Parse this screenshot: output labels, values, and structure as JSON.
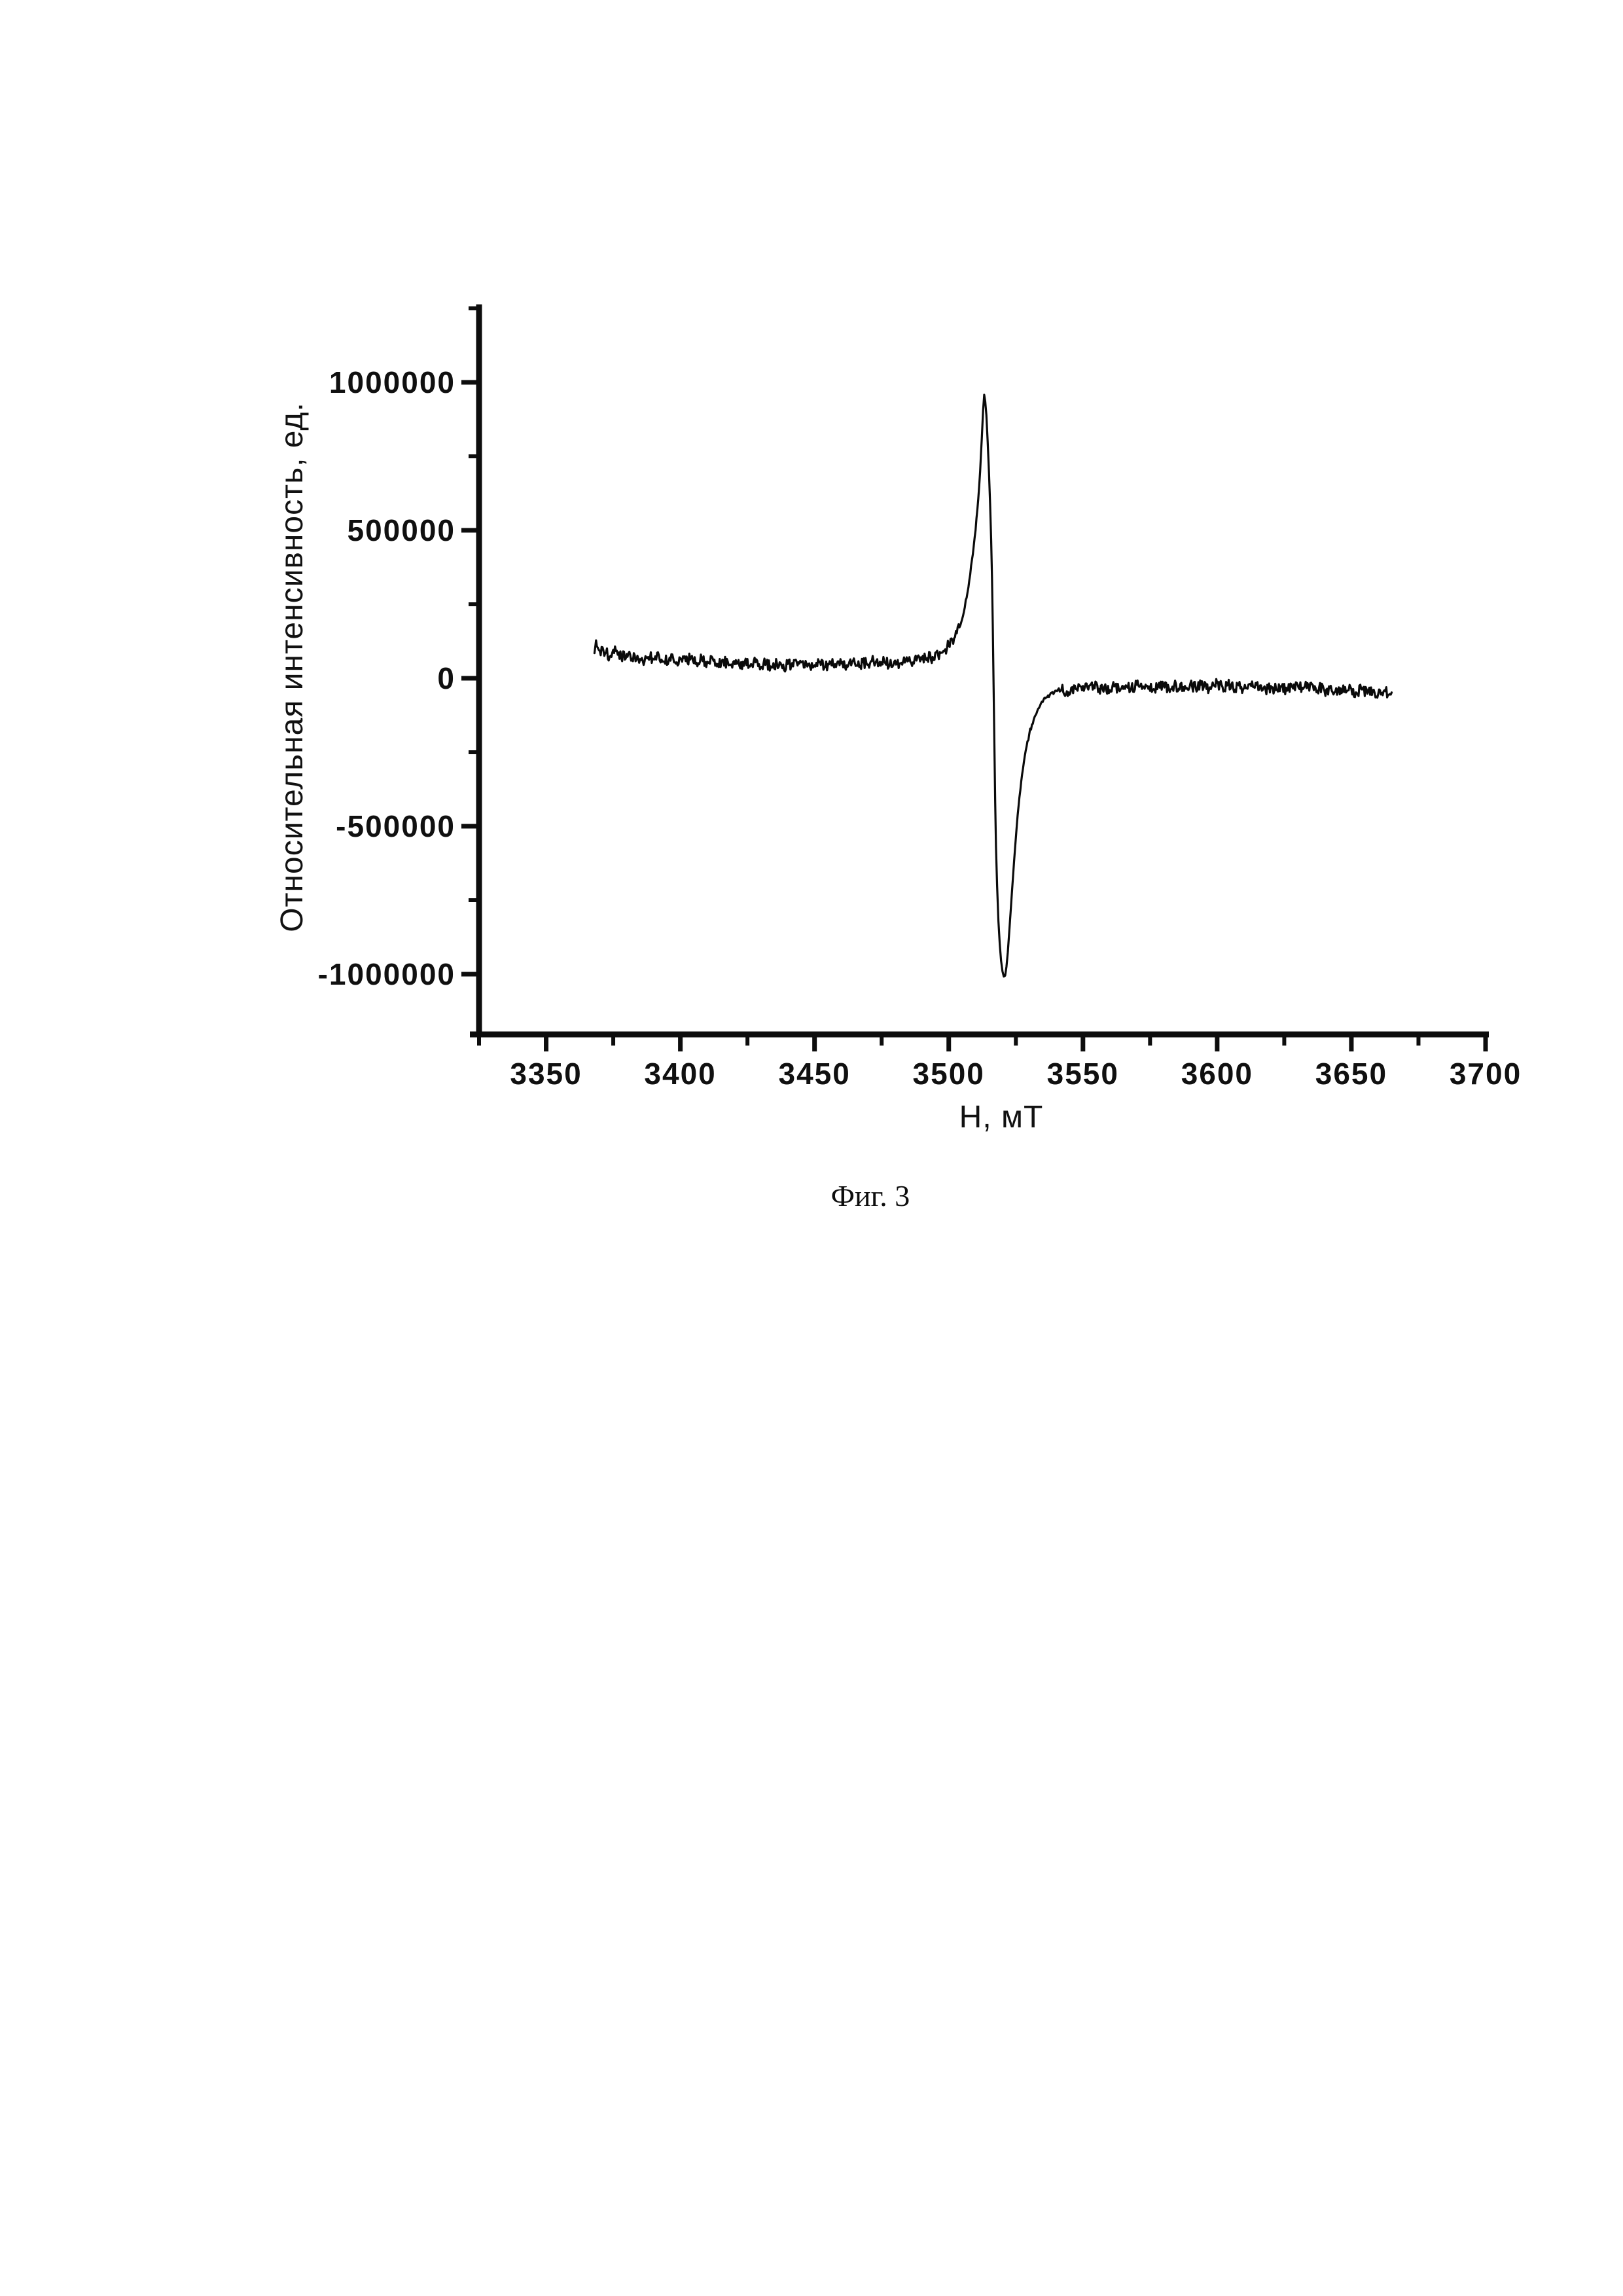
{
  "page": {
    "background_color": "#ffffff"
  },
  "figure_caption": "Фиг. 3",
  "chart_data": {
    "type": "line",
    "title": "",
    "xlabel": "Н, мТ",
    "ylabel": "Относительная интенсивность, ед.",
    "x_axis_range": [
      3325,
      3700
    ],
    "y_axis_range": [
      -1250000,
      1250000
    ],
    "grid": false,
    "legend": false,
    "line_color": "#0a0a0a",
    "axis_color": "#0d0d0d",
    "noise_amplitude": 20000,
    "x_ticks": {
      "major": [
        {
          "value": 3350,
          "label": "3350"
        },
        {
          "value": 3400,
          "label": "3400"
        },
        {
          "value": 3450,
          "label": "3450"
        },
        {
          "value": 3500,
          "label": "3500"
        },
        {
          "value": 3550,
          "label": "3550"
        },
        {
          "value": 3600,
          "label": "3600"
        },
        {
          "value": 3650,
          "label": "3650"
        },
        {
          "value": 3700,
          "label": "3700"
        }
      ],
      "minor": [
        3325,
        3375,
        3425,
        3475,
        3525,
        3575,
        3625,
        3675
      ]
    },
    "y_ticks": {
      "major": [
        {
          "value": 1000000,
          "label": "1000000"
        },
        {
          "value": 500000,
          "label": "500000"
        },
        {
          "value": 0,
          "label": "0"
        },
        {
          "value": -500000,
          "label": "-500000"
        },
        {
          "value": -1000000,
          "label": "-1000000"
        }
      ],
      "minor": [
        1250000,
        750000,
        250000,
        -250000,
        -750000
      ]
    },
    "series": [
      {
        "points": [
          [
            3368,
            85000
          ],
          [
            3368.6,
            128000
          ],
          [
            3369.2,
            104000
          ],
          [
            3370,
            92000
          ],
          [
            3372,
            84000
          ],
          [
            3374,
            76000
          ],
          [
            3376,
            92000
          ],
          [
            3378,
            68000
          ],
          [
            3380,
            82000
          ],
          [
            3382,
            66000
          ],
          [
            3384,
            76000
          ],
          [
            3386,
            58000
          ],
          [
            3388,
            72000
          ],
          [
            3390,
            64000
          ],
          [
            3392,
            78000
          ],
          [
            3394,
            56000
          ],
          [
            3396,
            70000
          ],
          [
            3398,
            54000
          ],
          [
            3400,
            68000
          ],
          [
            3402,
            58000
          ],
          [
            3404,
            72000
          ],
          [
            3406,
            52000
          ],
          [
            3408,
            66000
          ],
          [
            3410,
            56000
          ],
          [
            3412,
            68000
          ],
          [
            3414,
            48000
          ],
          [
            3416,
            62000
          ],
          [
            3418,
            44000
          ],
          [
            3420,
            58000
          ],
          [
            3422,
            42000
          ],
          [
            3424,
            56000
          ],
          [
            3426,
            40000
          ],
          [
            3428,
            54000
          ],
          [
            3430,
            38000
          ],
          [
            3432,
            52000
          ],
          [
            3434,
            36000
          ],
          [
            3436,
            50000
          ],
          [
            3438,
            34000
          ],
          [
            3440,
            48000
          ],
          [
            3442,
            40000
          ],
          [
            3444,
            54000
          ],
          [
            3446,
            36000
          ],
          [
            3448,
            50000
          ],
          [
            3450,
            44000
          ],
          [
            3452,
            56000
          ],
          [
            3454,
            40000
          ],
          [
            3456,
            52000
          ],
          [
            3458,
            38000
          ],
          [
            3460,
            50000
          ],
          [
            3462,
            44000
          ],
          [
            3464,
            56000
          ],
          [
            3466,
            42000
          ],
          [
            3468,
            54000
          ],
          [
            3470,
            46000
          ],
          [
            3472,
            58000
          ],
          [
            3474,
            44000
          ],
          [
            3476,
            56000
          ],
          [
            3478,
            48000
          ],
          [
            3480,
            60000
          ],
          [
            3482,
            50000
          ],
          [
            3484,
            62000
          ],
          [
            3486,
            52000
          ],
          [
            3488,
            60000
          ],
          [
            3490,
            64000
          ],
          [
            3492,
            68000
          ],
          [
            3494,
            72000
          ],
          [
            3496,
            80000
          ],
          [
            3498,
            92000
          ],
          [
            3500,
            110000
          ],
          [
            3502,
            135000
          ],
          [
            3503,
            152000
          ],
          [
            3504,
            172000
          ],
          [
            3505,
            200000
          ],
          [
            3506,
            240000
          ],
          [
            3507,
            290000
          ],
          [
            3508,
            350000
          ],
          [
            3509,
            420000
          ],
          [
            3510,
            500000
          ],
          [
            3511,
            605000
          ],
          [
            3511.7,
            700000
          ],
          [
            3512.3,
            810000
          ],
          [
            3512.8,
            905000
          ],
          [
            3513.2,
            958000
          ],
          [
            3513.6,
            935000
          ],
          [
            3514,
            890000
          ],
          [
            3514.5,
            800000
          ],
          [
            3515,
            690000
          ],
          [
            3515.4,
            590000
          ],
          [
            3515.8,
            470000
          ],
          [
            3516.1,
            340000
          ],
          [
            3516.4,
            180000
          ],
          [
            3516.7,
            -20000
          ],
          [
            3517,
            -230000
          ],
          [
            3517.3,
            -420000
          ],
          [
            3517.6,
            -570000
          ],
          [
            3518,
            -700000
          ],
          [
            3518.5,
            -820000
          ],
          [
            3519,
            -900000
          ],
          [
            3519.5,
            -955000
          ],
          [
            3520,
            -990000
          ],
          [
            3520.5,
            -1008000
          ],
          [
            3521,
            -1005000
          ],
          [
            3521.5,
            -975000
          ],
          [
            3522,
            -925000
          ],
          [
            3522.5,
            -862000
          ],
          [
            3523,
            -795000
          ],
          [
            3523.5,
            -728000
          ],
          [
            3524,
            -662000
          ],
          [
            3525,
            -538000
          ],
          [
            3526,
            -432000
          ],
          [
            3527,
            -348000
          ],
          [
            3528,
            -282000
          ],
          [
            3529,
            -230000
          ],
          [
            3530,
            -188000
          ],
          [
            3531,
            -156000
          ],
          [
            3532,
            -130000
          ],
          [
            3533,
            -110000
          ],
          [
            3534,
            -93000
          ],
          [
            3535,
            -80000
          ],
          [
            3536,
            -68000
          ],
          [
            3537,
            -58000
          ],
          [
            3538,
            -50000
          ],
          [
            3540,
            -42000
          ],
          [
            3542,
            -38000
          ],
          [
            3544,
            -44000
          ],
          [
            3546,
            -30000
          ],
          [
            3548,
            -42000
          ],
          [
            3550,
            -26000
          ],
          [
            3552,
            -38000
          ],
          [
            3554,
            -24000
          ],
          [
            3556,
            -36000
          ],
          [
            3558,
            -28000
          ],
          [
            3560,
            -40000
          ],
          [
            3562,
            -26000
          ],
          [
            3564,
            -38000
          ],
          [
            3566,
            -24000
          ],
          [
            3568,
            -34000
          ],
          [
            3570,
            -22000
          ],
          [
            3572,
            -36000
          ],
          [
            3574,
            -26000
          ],
          [
            3576,
            -40000
          ],
          [
            3578,
            -28000
          ],
          [
            3580,
            -20000
          ],
          [
            3582,
            -34000
          ],
          [
            3584,
            -24000
          ],
          [
            3586,
            -38000
          ],
          [
            3588,
            -26000
          ],
          [
            3590,
            -18000
          ],
          [
            3592,
            -32000
          ],
          [
            3594,
            -22000
          ],
          [
            3596,
            -36000
          ],
          [
            3598,
            -26000
          ],
          [
            3600,
            -16000
          ],
          [
            3602,
            -30000
          ],
          [
            3604,
            -22000
          ],
          [
            3606,
            -36000
          ],
          [
            3608,
            -24000
          ],
          [
            3610,
            -34000
          ],
          [
            3612,
            -20000
          ],
          [
            3614,
            -32000
          ],
          [
            3616,
            -24000
          ],
          [
            3618,
            -38000
          ],
          [
            3620,
            -26000
          ],
          [
            3622,
            -40000
          ],
          [
            3624,
            -28000
          ],
          [
            3626,
            -42000
          ],
          [
            3628,
            -30000
          ],
          [
            3630,
            -22000
          ],
          [
            3632,
            -36000
          ],
          [
            3634,
            -26000
          ],
          [
            3636,
            -40000
          ],
          [
            3638,
            -30000
          ],
          [
            3640,
            -44000
          ],
          [
            3642,
            -32000
          ],
          [
            3644,
            -46000
          ],
          [
            3646,
            -34000
          ],
          [
            3648,
            -48000
          ],
          [
            3650,
            -36000
          ],
          [
            3652,
            -50000
          ],
          [
            3654,
            -38000
          ],
          [
            3656,
            -52000
          ],
          [
            3658,
            -40000
          ],
          [
            3660,
            -54000
          ],
          [
            3662,
            -44000
          ],
          [
            3664,
            -56000
          ],
          [
            3665,
            -48000
          ]
        ]
      }
    ]
  }
}
